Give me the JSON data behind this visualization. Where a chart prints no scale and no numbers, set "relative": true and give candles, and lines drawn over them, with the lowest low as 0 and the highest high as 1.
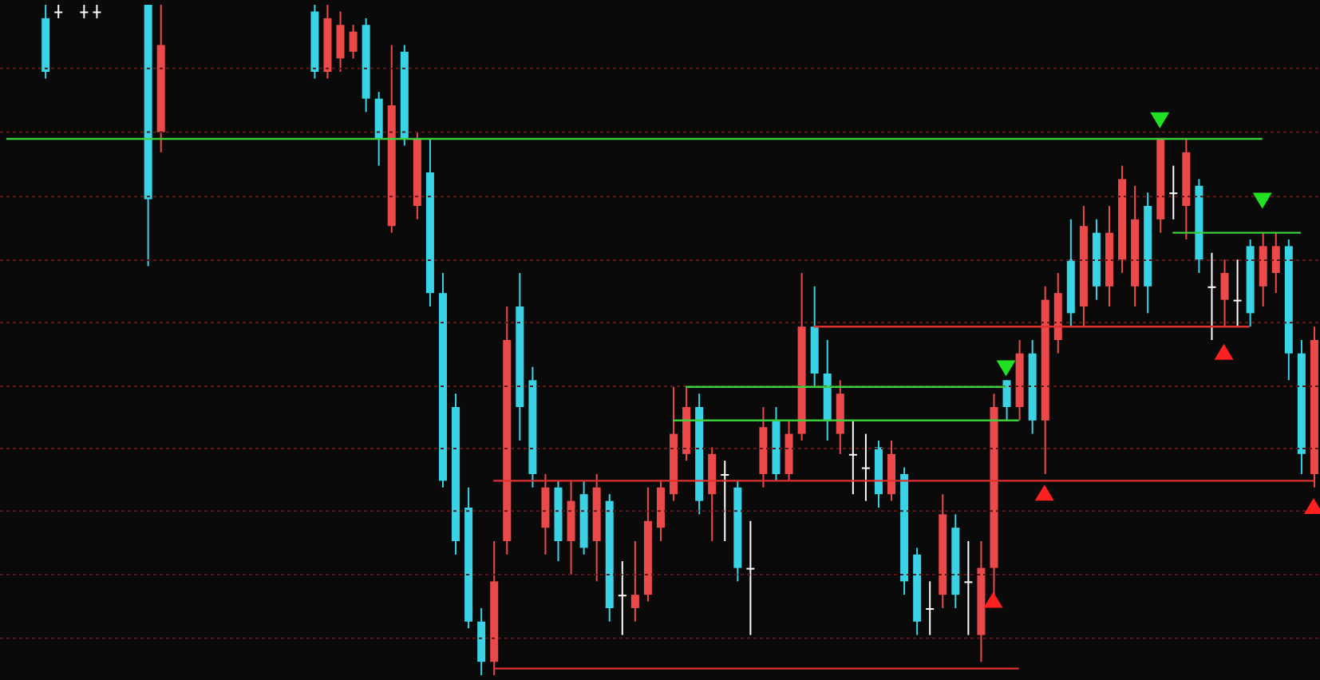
{
  "chart_data": {
    "type": "candlestick",
    "relative": true,
    "ref_lines": [
      {
        "axis": "y",
        "value": 0.905,
        "color": "#5a1818",
        "line_style": "dotted"
      },
      {
        "axis": "y",
        "value": 0.81,
        "color": "#5a1818",
        "line_style": "dotted"
      },
      {
        "axis": "y",
        "value": 0.714,
        "color": "#5a1818",
        "line_style": "dotted"
      },
      {
        "axis": "y",
        "value": 0.619,
        "color": "#5a1818",
        "line_style": "dotted"
      },
      {
        "axis": "y",
        "value": 0.526,
        "color": "#5a1818",
        "line_style": "dotted"
      },
      {
        "axis": "y",
        "value": 0.431,
        "color": "#5a1818",
        "line_style": "dotted"
      },
      {
        "axis": "y",
        "value": 0.338,
        "color": "#5a1818",
        "line_style": "dotted"
      },
      {
        "axis": "y",
        "value": 0.245,
        "color": "#5a1818",
        "line_style": "dotted"
      },
      {
        "axis": "y",
        "value": 0.15,
        "color": "#5a1818",
        "line_style": "dotted"
      },
      {
        "axis": "y",
        "value": 0.055,
        "color": "#5a1818",
        "line_style": "dotted"
      }
    ],
    "categories": [
      null,
      null,
      null,
      null,
      null,
      null,
      null,
      null,
      null,
      null,
      null,
      null,
      null,
      null,
      null,
      null,
      null,
      null,
      null,
      null,
      null,
      null,
      null,
      null,
      null,
      null,
      null,
      null,
      null,
      null,
      null,
      null,
      null,
      null,
      null,
      null,
      null,
      null,
      null,
      null,
      null,
      null,
      null,
      null,
      null,
      null,
      null,
      null,
      null,
      null,
      null,
      null,
      null,
      null,
      null,
      null,
      null,
      null,
      null,
      null,
      null,
      null,
      null,
      null,
      null,
      null,
      null,
      null,
      null,
      null,
      null,
      null,
      null,
      null,
      null,
      null,
      null,
      null,
      null,
      null,
      null,
      null,
      null,
      null,
      null,
      null,
      null,
      null,
      null,
      null,
      null,
      null,
      null,
      null,
      null,
      null,
      null,
      null,
      null,
      null,
      null,
      null,
      null
    ],
    "ohlc": [
      null,
      null,
      null,
      [
        0.98,
        1,
        0.89,
        0.9
      ],
      [
        0.99,
        1,
        0.98,
        0.99
      ],
      null,
      [
        0.99,
        1,
        0.98,
        0.99
      ],
      [
        0.99,
        1,
        0.98,
        0.99
      ],
      null,
      null,
      null,
      [
        1,
        1,
        0.61,
        0.71
      ],
      [
        0.81,
        1,
        0.78,
        0.94
      ],
      null,
      null,
      null,
      null,
      null,
      null,
      null,
      null,
      null,
      null,
      null,
      [
        0.99,
        1,
        0.89,
        0.9
      ],
      [
        0.9,
        1,
        0.89,
        0.98
      ],
      [
        0.92,
        0.99,
        0.9,
        0.97
      ],
      [
        0.93,
        0.97,
        0.92,
        0.96
      ],
      [
        0.97,
        0.98,
        0.84,
        0.86
      ],
      [
        0.86,
        0.87,
        0.76,
        0.8
      ],
      [
        0.67,
        0.94,
        0.66,
        0.85
      ],
      [
        0.93,
        0.94,
        0.79,
        0.8
      ],
      [
        0.7,
        0.81,
        0.68,
        0.8
      ],
      [
        0.75,
        0.8,
        0.55,
        0.57
      ],
      [
        0.57,
        0.6,
        0.28,
        0.29
      ],
      [
        0.4,
        0.42,
        0.18,
        0.2
      ],
      [
        0.25,
        0.28,
        0.07,
        0.08
      ],
      [
        0.08,
        0.1,
        0,
        0.02
      ],
      [
        0.02,
        0.2,
        0,
        0.14
      ],
      [
        0.2,
        0.55,
        0.18,
        0.5
      ],
      [
        0.55,
        0.6,
        0.35,
        0.4
      ],
      [
        0.44,
        0.46,
        0.28,
        0.3
      ],
      [
        0.22,
        0.3,
        0.18,
        0.28
      ],
      [
        0.28,
        0.29,
        0.17,
        0.2
      ],
      [
        0.2,
        0.29,
        0.15,
        0.26
      ],
      [
        0.27,
        0.29,
        0.18,
        0.19
      ],
      [
        0.2,
        0.3,
        0.14,
        0.28
      ],
      [
        0.26,
        0.27,
        0.08,
        0.1
      ],
      [
        0.12,
        0.17,
        0.06,
        0.12
      ],
      [
        0.1,
        0.2,
        0.08,
        0.12
      ],
      [
        0.12,
        0.28,
        0.11,
        0.23
      ],
      [
        0.22,
        0.29,
        0.2,
        0.28
      ],
      [
        0.27,
        0.43,
        0.26,
        0.36
      ],
      [
        0.33,
        0.43,
        0.32,
        0.4
      ],
      [
        0.4,
        0.42,
        0.24,
        0.26
      ],
      [
        0.27,
        0.34,
        0.2,
        0.33
      ],
      [
        0.3,
        0.32,
        0.2,
        0.3
      ],
      [
        0.28,
        0.29,
        0.14,
        0.16
      ],
      [
        0.16,
        0.23,
        0.06,
        0.16
      ],
      [
        0.3,
        0.4,
        0.28,
        0.37
      ],
      [
        0.38,
        0.4,
        0.29,
        0.3
      ],
      [
        0.3,
        0.38,
        0.29,
        0.36
      ],
      [
        0.36,
        0.6,
        0.35,
        0.52
      ],
      [
        0.52,
        0.58,
        0.43,
        0.45
      ],
      [
        0.45,
        0.5,
        0.35,
        0.38
      ],
      [
        0.36,
        0.44,
        0.33,
        0.42
      ],
      [
        0.33,
        0.38,
        0.27,
        0.33
      ],
      [
        0.31,
        0.36,
        0.26,
        0.31
      ],
      [
        0.34,
        0.35,
        0.25,
        0.27
      ],
      [
        0.27,
        0.35,
        0.26,
        0.33
      ],
      [
        0.3,
        0.31,
        0.12,
        0.14
      ],
      [
        0.18,
        0.19,
        0.06,
        0.08
      ],
      [
        0.1,
        0.14,
        0.06,
        0.1
      ],
      [
        0.12,
        0.27,
        0.1,
        0.24
      ],
      [
        0.22,
        0.24,
        0.1,
        0.12
      ],
      [
        0.14,
        0.2,
        0.06,
        0.14
      ],
      [
        0.06,
        0.2,
        0.02,
        0.16
      ],
      [
        0.16,
        0.42,
        0.12,
        0.4
      ],
      [
        0.44,
        0.44,
        0.38,
        0.4
      ],
      [
        0.4,
        0.5,
        0.38,
        0.48
      ],
      [
        0.48,
        0.5,
        0.36,
        0.38
      ],
      [
        0.38,
        0.58,
        0.3,
        0.56
      ],
      [
        0.5,
        0.6,
        0.48,
        0.57
      ],
      [
        0.62,
        0.68,
        0.52,
        0.54
      ],
      [
        0.55,
        0.7,
        0.52,
        0.67
      ],
      [
        0.66,
        0.68,
        0.56,
        0.58
      ],
      [
        0.58,
        0.7,
        0.55,
        0.66
      ],
      [
        0.62,
        0.76,
        0.6,
        0.74
      ],
      [
        0.58,
        0.73,
        0.55,
        0.68
      ],
      [
        0.7,
        0.72,
        0.54,
        0.58
      ],
      [
        0.68,
        0.8,
        0.66,
        0.8
      ],
      [
        0.72,
        0.76,
        0.68,
        0.72
      ],
      [
        0.7,
        0.8,
        0.65,
        0.78
      ],
      [
        0.73,
        0.74,
        0.6,
        0.62
      ],
      [
        0.58,
        0.63,
        0.5,
        0.58
      ],
      [
        0.56,
        0.62,
        0.52,
        0.6
      ],
      [
        0.56,
        0.62,
        0.52,
        0.56
      ],
      [
        0.64,
        0.65,
        0.52,
        0.54
      ],
      [
        0.58,
        0.66,
        0.55,
        0.64
      ],
      [
        0.6,
        0.66,
        0.57,
        0.64
      ],
      [
        0.64,
        0.65,
        0.44,
        0.48
      ],
      [
        0.48,
        0.5,
        0.3,
        0.33
      ],
      [
        0.3,
        0.52,
        0.28,
        0.5
      ]
    ],
    "colors": [
      null,
      null,
      null,
      "#3ad3e6",
      "#ffffff",
      null,
      "#ffffff",
      "#ffffff",
      null,
      null,
      null,
      "#3ad3e6",
      "#ec4a4a",
      null,
      null,
      null,
      null,
      null,
      null,
      null,
      null,
      null,
      null,
      null,
      "#3ad3e6",
      "#ec4a4a",
      "#ec4a4a",
      "#ec4a4a",
      "#3ad3e6",
      "#3ad3e6",
      "#ec4a4a",
      "#3ad3e6",
      "#ec4a4a",
      "#3ad3e6",
      "#3ad3e6",
      "#3ad3e6",
      "#3ad3e6",
      "#3ad3e6",
      "#ec4a4a",
      "#ec4a4a",
      "#3ad3e6",
      "#3ad3e6",
      "#ec4a4a",
      "#3ad3e6",
      "#ec4a4a",
      "#3ad3e6",
      "#ec4a4a",
      "#3ad3e6",
      "#ffffff",
      "#ec4a4a",
      "#ec4a4a",
      "#ec4a4a",
      "#ec4a4a",
      "#ec4a4a",
      "#3ad3e6",
      "#ec4a4a",
      "#ffffff",
      "#3ad3e6",
      "#ffffff",
      "#ec4a4a",
      "#3ad3e6",
      "#ec4a4a",
      "#ec4a4a",
      "#3ad3e6",
      "#3ad3e6",
      "#ec4a4a",
      "#ffffff",
      "#ffffff",
      "#3ad3e6",
      "#ec4a4a",
      "#3ad3e6",
      "#3ad3e6",
      "#ffffff",
      "#ec4a4a",
      "#3ad3e6",
      "#ffffff",
      "#ec4a4a",
      "#ec4a4a",
      "#3ad3e6",
      "#ec4a4a",
      "#3ad3e6",
      "#ec4a4a",
      "#ec4a4a",
      "#3ad3e6",
      "#ec4a4a",
      "#3ad3e6",
      "#ec4a4a",
      "#ec4a4a",
      "#ec4a4a",
      "#3ad3e6",
      "#ec4a4a",
      "#ffffff",
      "#ec4a4a",
      "#3ad3e6",
      "#ffffff",
      "#ec4a4a",
      "#ffffff",
      "#3ad3e6",
      "#ec4a4a",
      "#ec4a4a",
      "#3ad3e6",
      "#3ad3e6",
      "#ec4a4a"
    ],
    "series": [
      {
        "type": "line",
        "color": "#3ccf3c",
        "values": [
          0.8,
          0.8,
          0.8,
          0.8,
          0.8,
          0.8,
          0.8,
          0.8,
          0.8,
          0.8,
          0.8,
          0.8,
          0.8,
          0.8,
          0.8,
          0.8,
          0.8,
          0.8,
          0.8,
          0.8,
          0.8,
          0.8,
          0.8,
          0.8,
          0.8,
          0.8,
          0.8,
          0.8,
          0.8,
          0.8,
          0.8,
          0.8,
          0.8,
          0.8,
          0.8,
          0.8,
          0.8,
          0.8,
          0.8,
          0.8,
          0.8,
          0.8,
          0.8,
          0.8,
          0.8,
          0.8,
          0.8,
          0.8,
          0.8,
          0.8,
          0.8,
          0.8,
          0.8,
          0.8,
          0.8,
          0.8,
          0.8,
          0.8,
          0.8,
          0.8,
          0.8,
          0.8,
          0.8,
          0.8,
          0.8,
          0.8,
          0.8,
          0.8,
          0.8,
          0.8,
          0.8,
          0.8,
          0.8,
          0.8,
          0.8,
          0.8,
          0.8,
          0.8,
          0.8,
          0.8,
          0.8,
          0.8,
          0.8,
          0.8,
          0.8,
          0.8,
          0.8,
          0.8,
          0.8,
          0.8,
          0.8,
          0.8,
          0.8,
          0.8,
          0.8,
          0.8,
          0.8,
          0.8,
          0.8,
          null,
          null,
          null,
          null
        ]
      },
      {
        "type": "line",
        "color": "#3ccf3c",
        "values": [
          null,
          null,
          null,
          null,
          null,
          null,
          null,
          null,
          null,
          null,
          null,
          null,
          null,
          null,
          null,
          null,
          null,
          null,
          null,
          null,
          null,
          null,
          null,
          null,
          null,
          null,
          null,
          null,
          null,
          null,
          null,
          null,
          null,
          null,
          null,
          null,
          null,
          null,
          null,
          null,
          null,
          null,
          null,
          null,
          null,
          null,
          null,
          null,
          null,
          null,
          null,
          null,
          null,
          null,
          null,
          null,
          null,
          null,
          null,
          null,
          null,
          null,
          null,
          null,
          null,
          null,
          null,
          null,
          null,
          null,
          null,
          null,
          null,
          null,
          null,
          null,
          null,
          null,
          null,
          null,
          null,
          null,
          null,
          null,
          null,
          null,
          null,
          null,
          null,
          null,
          null,
          0.66,
          0.66,
          0.66,
          0.66,
          0.66,
          0.66,
          0.66,
          0.66,
          0.66,
          0.66,
          0.66,
          null
        ]
      },
      {
        "type": "line",
        "color": "#e03030",
        "values": [
          null,
          null,
          null,
          null,
          null,
          null,
          null,
          null,
          null,
          null,
          null,
          null,
          null,
          null,
          null,
          null,
          null,
          null,
          null,
          null,
          null,
          null,
          null,
          null,
          null,
          null,
          null,
          null,
          null,
          null,
          null,
          null,
          null,
          null,
          null,
          null,
          null,
          null,
          null,
          null,
          null,
          null,
          null,
          null,
          null,
          null,
          null,
          null,
          null,
          null,
          null,
          null,
          null,
          null,
          null,
          null,
          null,
          null,
          null,
          null,
          null,
          null,
          null,
          0.52,
          0.52,
          0.52,
          0.52,
          0.52,
          0.52,
          0.52,
          0.52,
          0.52,
          0.52,
          0.52,
          0.52,
          0.52,
          0.52,
          0.52,
          0.52,
          0.52,
          0.52,
          0.52,
          0.52,
          0.52,
          0.52,
          0.52,
          0.52,
          0.52,
          0.52,
          0.52,
          0.52,
          0.52,
          0.52,
          0.52,
          0.52,
          0.52,
          0.52,
          0.52,
          null,
          null,
          null,
          null,
          null
        ]
      },
      {
        "type": "line",
        "color": "#3ccf3c",
        "values": [
          null,
          null,
          null,
          null,
          null,
          null,
          null,
          null,
          null,
          null,
          null,
          null,
          null,
          null,
          null,
          null,
          null,
          null,
          null,
          null,
          null,
          null,
          null,
          null,
          null,
          null,
          null,
          null,
          null,
          null,
          null,
          null,
          null,
          null,
          null,
          null,
          null,
          null,
          null,
          null,
          null,
          null,
          null,
          null,
          null,
          null,
          null,
          null,
          null,
          null,
          null,
          null,
          null,
          0.43,
          0.43,
          0.43,
          0.43,
          0.43,
          0.43,
          0.43,
          0.43,
          0.43,
          0.43,
          0.43,
          0.43,
          0.43,
          0.43,
          0.43,
          0.43,
          0.43,
          0.43,
          0.43,
          0.43,
          0.43,
          0.43,
          0.43,
          0.43,
          0.43,
          0.43,
          null,
          null,
          null,
          null,
          null,
          null,
          null,
          null,
          null,
          null,
          null,
          null,
          null,
          null,
          null,
          null,
          null,
          null,
          null,
          null,
          null,
          null,
          null,
          null
        ]
      },
      {
        "type": "line",
        "color": "#3ccf3c",
        "values": [
          null,
          null,
          null,
          null,
          null,
          null,
          null,
          null,
          null,
          null,
          null,
          null,
          null,
          null,
          null,
          null,
          null,
          null,
          null,
          null,
          null,
          null,
          null,
          null,
          null,
          null,
          null,
          null,
          null,
          null,
          null,
          null,
          null,
          null,
          null,
          null,
          null,
          null,
          null,
          null,
          null,
          null,
          null,
          null,
          null,
          null,
          null,
          null,
          null,
          null,
          null,
          null,
          0.38,
          0.38,
          0.38,
          0.38,
          0.38,
          0.38,
          0.38,
          0.38,
          0.38,
          0.38,
          0.38,
          0.38,
          0.38,
          0.38,
          0.38,
          0.38,
          0.38,
          0.38,
          0.38,
          0.38,
          0.38,
          0.38,
          0.38,
          0.38,
          0.38,
          0.38,
          0.38,
          0.38,
          null,
          null,
          null,
          null,
          null,
          null,
          null,
          null,
          null,
          null,
          null,
          null,
          null,
          null,
          null,
          null,
          null,
          null,
          null,
          null,
          null,
          null,
          null
        ]
      },
      {
        "type": "line",
        "color": "#e03030",
        "values": [
          null,
          null,
          null,
          null,
          null,
          null,
          null,
          null,
          null,
          null,
          null,
          null,
          null,
          null,
          null,
          null,
          null,
          null,
          null,
          null,
          null,
          null,
          null,
          null,
          null,
          null,
          null,
          null,
          null,
          null,
          null,
          null,
          null,
          null,
          null,
          null,
          null,
          null,
          0.29,
          0.29,
          0.29,
          0.29,
          0.29,
          0.29,
          0.29,
          0.29,
          0.29,
          0.29,
          0.29,
          0.29,
          0.29,
          0.29,
          0.29,
          0.29,
          0.29,
          0.29,
          0.29,
          0.29,
          0.29,
          0.29,
          0.29,
          0.29,
          0.29,
          0.29,
          0.29,
          0.29,
          0.29,
          0.29,
          0.29,
          0.29,
          0.29,
          0.29,
          0.29,
          0.29,
          0.29,
          0.29,
          0.29,
          0.29,
          0.29,
          0.29,
          0.29,
          0.29,
          0.29,
          0.29,
          0.29,
          0.29,
          0.29,
          0.29,
          0.29,
          0.29,
          0.29,
          0.29,
          0.29,
          0.29,
          0.29,
          0.29,
          0.29,
          0.29,
          0.29,
          0.29,
          0.29,
          0.29,
          0.29
        ]
      },
      {
        "type": "line",
        "color": "#e03030",
        "values": [
          null,
          null,
          null,
          null,
          null,
          null,
          null,
          null,
          null,
          null,
          null,
          null,
          null,
          null,
          null,
          null,
          null,
          null,
          null,
          null,
          null,
          null,
          null,
          null,
          null,
          null,
          null,
          null,
          null,
          null,
          null,
          null,
          null,
          null,
          null,
          null,
          null,
          null,
          0.01,
          0.01,
          0.01,
          0.01,
          0.01,
          0.01,
          0.01,
          0.01,
          0.01,
          0.01,
          0.01,
          0.01,
          0.01,
          0.01,
          0.01,
          0.01,
          0.01,
          0.01,
          0.01,
          0.01,
          0.01,
          0.01,
          0.01,
          0.01,
          0.01,
          0.01,
          0.01,
          0.01,
          0.01,
          0.01,
          0.01,
          0.01,
          0.01,
          0.01,
          0.01,
          0.01,
          0.01,
          0.01,
          0.01,
          0.01,
          0.01,
          0.01,
          null,
          null,
          null,
          null,
          null,
          null,
          null,
          null,
          null,
          null,
          null,
          null,
          null,
          null,
          null,
          null,
          null,
          null,
          null,
          null,
          null,
          null,
          null
        ]
      },
      {
        "type": "scatter",
        "marker": "triangle",
        "color": "#22e022",
        "values": [
          null,
          null,
          null,
          null,
          null,
          null,
          null,
          null,
          null,
          null,
          null,
          null,
          null,
          null,
          null,
          null,
          null,
          null,
          null,
          null,
          null,
          null,
          null,
          null,
          null,
          null,
          null,
          null,
          null,
          null,
          null,
          null,
          null,
          null,
          null,
          null,
          null,
          null,
          null,
          null,
          null,
          null,
          null,
          null,
          null,
          null,
          null,
          null,
          null,
          null,
          null,
          null,
          null,
          null,
          null,
          null,
          null,
          null,
          null,
          null,
          null,
          null,
          null,
          null,
          null,
          null,
          null,
          null,
          null,
          null,
          null,
          null,
          null,
          null,
          null,
          null,
          null,
          null,
          0.46,
          null,
          null,
          null,
          null,
          null,
          null,
          null,
          null,
          null,
          null,
          null,
          0.83,
          null,
          null,
          null,
          null,
          null,
          null,
          null,
          0.71,
          null,
          null,
          null,
          null
        ]
      },
      {
        "type": "scatter",
        "marker": "triangle",
        "color": "#ff2020",
        "values": [
          null,
          null,
          null,
          null,
          null,
          null,
          null,
          null,
          null,
          null,
          null,
          null,
          null,
          null,
          null,
          null,
          null,
          null,
          null,
          null,
          null,
          null,
          null,
          null,
          null,
          null,
          null,
          null,
          null,
          null,
          null,
          null,
          null,
          null,
          null,
          null,
          null,
          null,
          null,
          null,
          null,
          null,
          null,
          null,
          null,
          null,
          null,
          null,
          null,
          null,
          null,
          null,
          null,
          null,
          null,
          null,
          null,
          null,
          null,
          null,
          null,
          null,
          null,
          null,
          null,
          null,
          null,
          null,
          null,
          null,
          null,
          null,
          null,
          null,
          null,
          null,
          null,
          0.11,
          null,
          null,
          null,
          0.27,
          null,
          null,
          null,
          null,
          null,
          null,
          null,
          null,
          null,
          null,
          null,
          null,
          null,
          0.48,
          null,
          null,
          null,
          null,
          null,
          null,
          0.25
        ]
      }
    ]
  }
}
